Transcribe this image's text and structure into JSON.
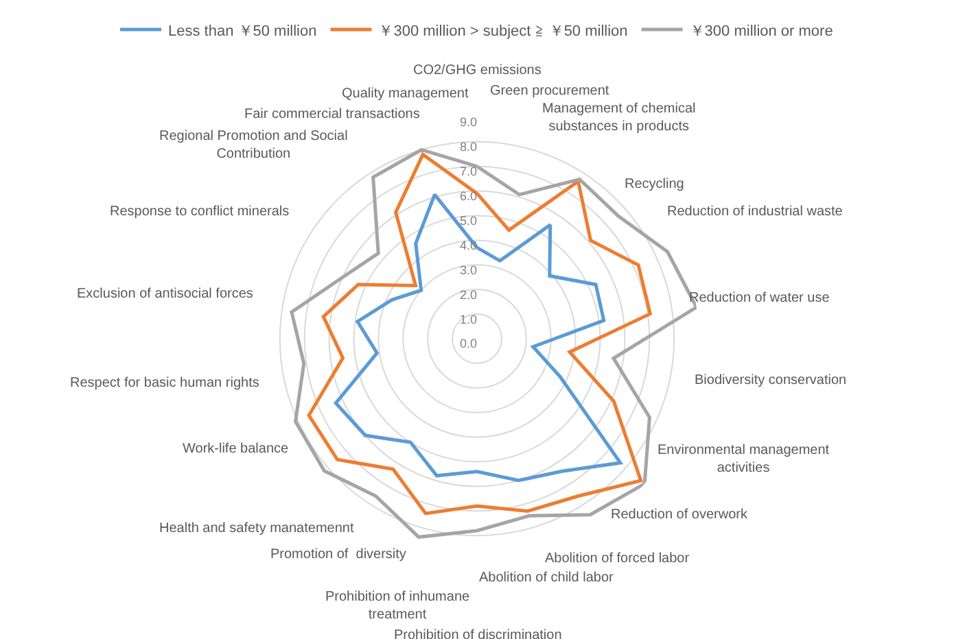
{
  "chart_data": {
    "type": "radar",
    "categories": [
      "CO2/GHG emissions",
      "Green procurement",
      "Management of chemical substances in products",
      "Recycling",
      "Reduction of industrial waste",
      "Reduction of water use",
      "Biodiversity conservation",
      "Environmental management activities",
      "Reduction of overwork",
      "Abolition of forced labor",
      "Abolition of child labor",
      "Prohibition of discrimination",
      "Prohibition of inhumane treatment",
      "Promotion of  diversity",
      "Health and safety manatemennt",
      "Work-life balance",
      "Respect for basic human rights",
      "Exclusion of antisocial forces",
      "Response to conflict minerals",
      "Regional Promotion and Social Contribution",
      "Fair commercial transactions",
      "Quality management"
    ],
    "series": [
      {
        "name": "Less than ￥50 million",
        "color": "#5b9bd5",
        "values": [
          3.7,
          3.3,
          5.5,
          3.9,
          5.3,
          5.2,
          2.3,
          3.7,
          7.7,
          6.4,
          6.0,
          5.4,
          5.8,
          5.0,
          6.0,
          6.3,
          4.1,
          4.9,
          3.8,
          3.0,
          4.6,
          6.1
        ]
      },
      {
        "name": "￥300 million > subject ≧ ￥50 million",
        "color": "#ed7d31",
        "values": [
          5.9,
          4.6,
          7.6,
          6.1,
          7.2,
          7.1,
          3.8,
          6.1,
          8.8,
          7.6,
          7.3,
          6.8,
          7.4,
          6.3,
          7.5,
          7.5,
          5.5,
          6.3,
          5.3,
          3.3,
          6.1,
          7.8
        ]
      },
      {
        "name": "￥300 million or more",
        "color": "#a5a5a5",
        "values": [
          7.0,
          6.1,
          7.7,
          7.6,
          8.5,
          9.0,
          5.6,
          7.7,
          9.0,
          8.5,
          7.5,
          7.8,
          8.4,
          7.6,
          8.2,
          8.1,
          7.1,
          7.6,
          6.0,
          5.3,
          7.8,
          8.0
        ]
      }
    ],
    "ylim": [
      0,
      9
    ],
    "yticks": [
      {
        "value": 0,
        "label": "0.0"
      },
      {
        "value": 1,
        "label": "1.0"
      },
      {
        "value": 2,
        "label": "2.0"
      },
      {
        "value": 3,
        "label": "3.0"
      },
      {
        "value": 4,
        "label": "4.0"
      },
      {
        "value": 5,
        "label": "5.0"
      },
      {
        "value": 6,
        "label": "6.0"
      },
      {
        "value": 7,
        "label": "7.0"
      },
      {
        "value": 8,
        "label": "8.0"
      },
      {
        "value": 9,
        "label": "9.0"
      }
    ],
    "legend": "top",
    "grid": true,
    "marker": "none",
    "line_style": "solid"
  }
}
